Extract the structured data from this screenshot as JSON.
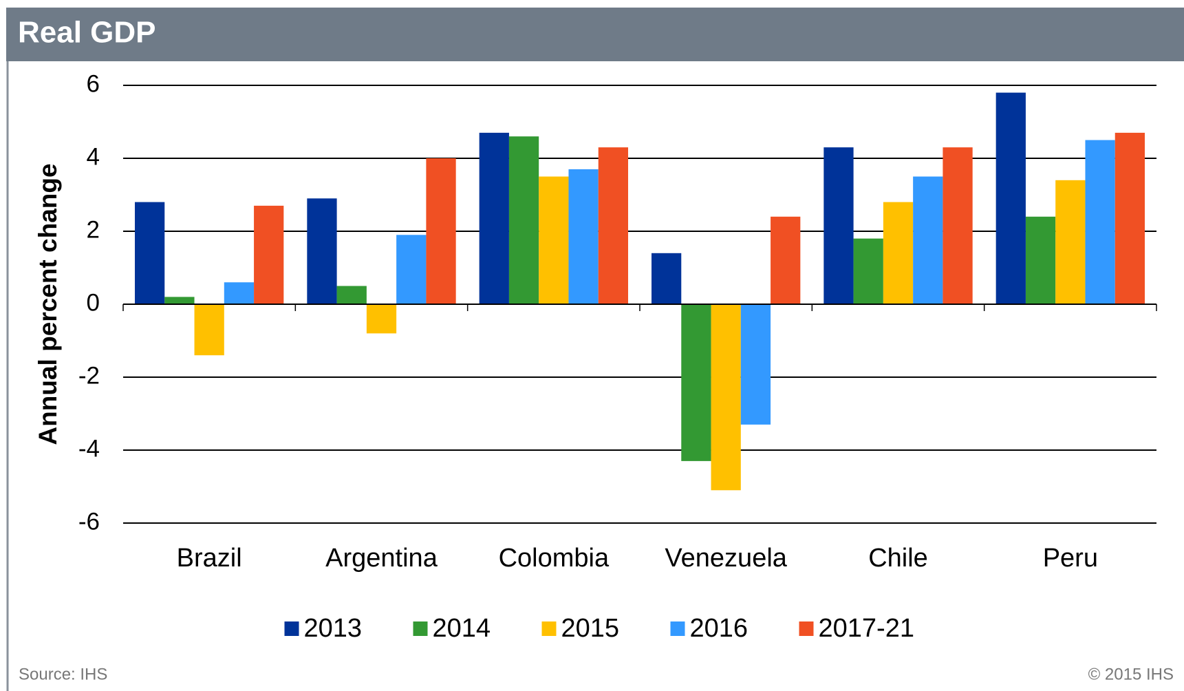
{
  "chart_data": {
    "type": "bar",
    "title": "Real GDP",
    "ylabel": "Annual percent change",
    "categories": [
      "Brazil",
      "Argentina",
      "Colombia",
      "Venezuela",
      "Chile",
      "Peru"
    ],
    "series": [
      {
        "name": "2013",
        "color": "#003399",
        "values": [
          2.8,
          2.9,
          4.7,
          1.4,
          4.3,
          5.8
        ]
      },
      {
        "name": "2014",
        "color": "#339933",
        "values": [
          0.2,
          0.5,
          4.6,
          -4.3,
          1.8,
          2.4
        ]
      },
      {
        "name": "2015",
        "color": "#ffc000",
        "values": [
          -1.4,
          -0.8,
          3.5,
          -5.1,
          2.8,
          3.4
        ]
      },
      {
        "name": "2016",
        "color": "#3399ff",
        "values": [
          0.6,
          1.9,
          3.7,
          -3.3,
          3.5,
          4.5
        ]
      },
      {
        "name": "2017-21",
        "color": "#f05023",
        "values": [
          2.7,
          4.0,
          4.3,
          2.4,
          4.3,
          4.7
        ]
      }
    ],
    "ylim": [
      -6,
      6
    ],
    "yticks": [
      -6,
      -4,
      -2,
      0,
      2,
      4,
      6
    ],
    "grid": true,
    "legend": "bottom",
    "source": "Source: IHS",
    "copyright": "© 2015 IHS"
  }
}
